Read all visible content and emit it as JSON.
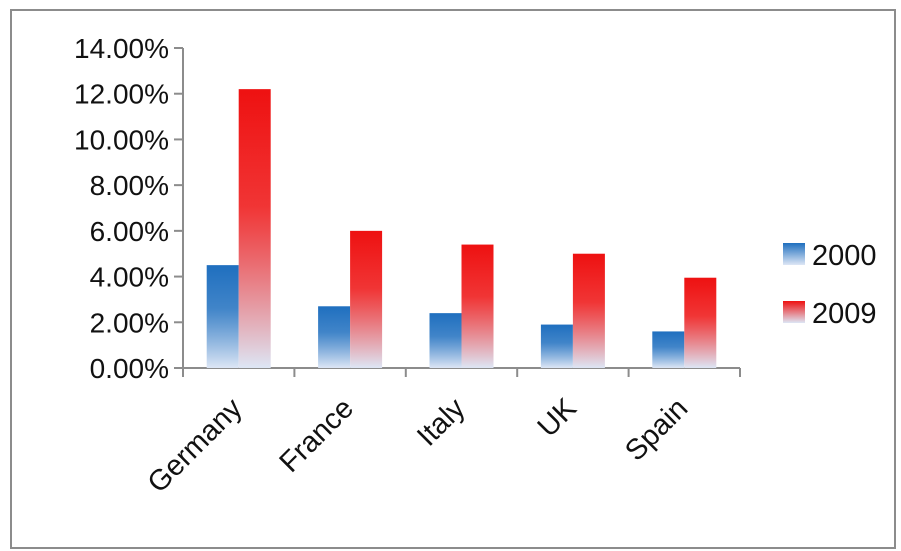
{
  "chart_data": {
    "type": "bar",
    "title": "",
    "xlabel": "",
    "ylabel": "",
    "categories": [
      "Germany",
      "France",
      "Italy",
      "UK",
      "Spain"
    ],
    "series": [
      {
        "name": "2000",
        "values": [
          4.5,
          2.7,
          2.4,
          1.9,
          1.6
        ],
        "color": "#1f6fbf",
        "fade": "#dde6f5"
      },
      {
        "name": "2009",
        "values": [
          12.2,
          6.0,
          5.4,
          5.0,
          3.95
        ],
        "color": "#ee1111",
        "fade": "#dde6f5"
      }
    ],
    "ylim": [
      0,
      14
    ],
    "y_ticks": [
      {
        "value": 0,
        "label": "0.00%"
      },
      {
        "value": 2,
        "label": "2.00%"
      },
      {
        "value": 4,
        "label": "4.00%"
      },
      {
        "value": 6,
        "label": "6.00%"
      },
      {
        "value": 8,
        "label": "8.00%"
      },
      {
        "value": 10,
        "label": "10.00%"
      },
      {
        "value": 12,
        "label": "12.00%"
      },
      {
        "value": 14,
        "label": "14.00%"
      }
    ],
    "grid": false,
    "legend_position": "right"
  }
}
